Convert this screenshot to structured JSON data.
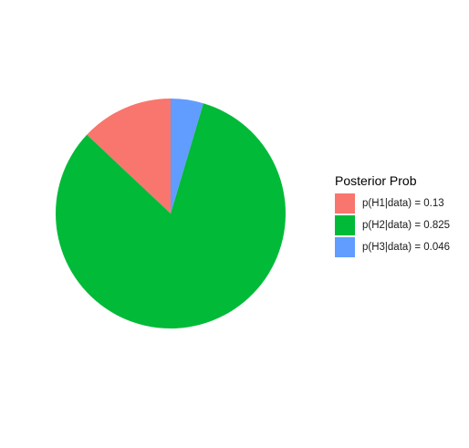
{
  "chart_data": {
    "type": "pie",
    "title": "",
    "legend": {
      "title": "Posterior Prob",
      "position": "right"
    },
    "slices": [
      {
        "label": "p(H1|data) = 0.13",
        "value": 0.13,
        "color": "#F8766D"
      },
      {
        "label": "p(H2|data) = 0.825",
        "value": 0.825,
        "color": "#00BA38"
      },
      {
        "label": "p(H3|data) = 0.046",
        "value": 0.046,
        "color": "#619CFF"
      }
    ],
    "start": "12 o'clock",
    "direction": "counterclockwise",
    "grid": false
  }
}
